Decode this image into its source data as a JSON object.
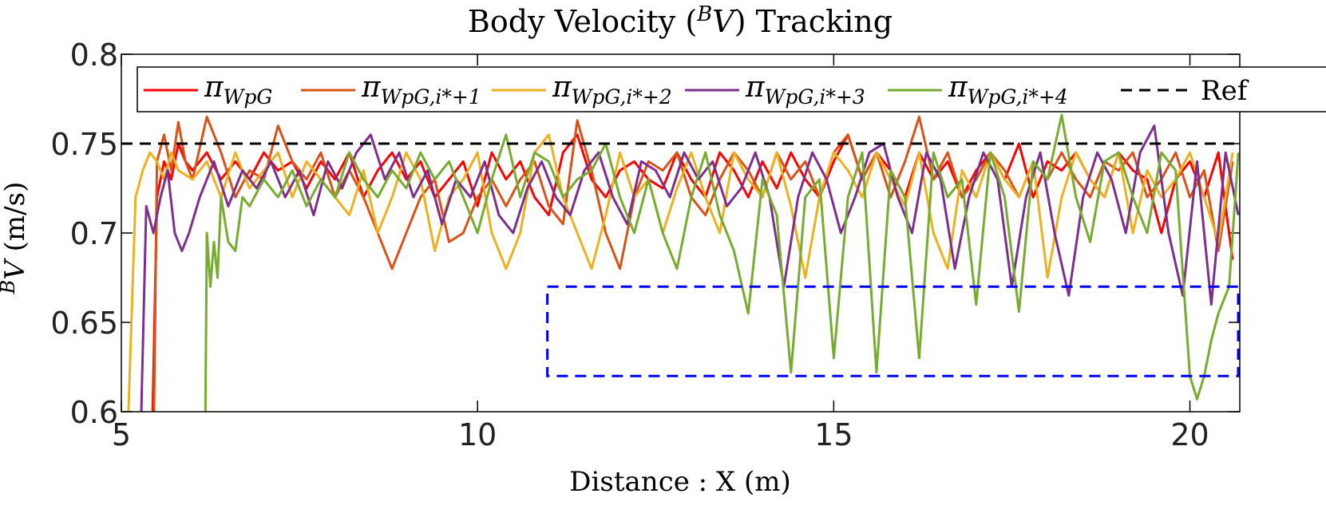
{
  "chart_data": {
    "type": "line",
    "title": "Body Velocity (",
    "title_sup": "B",
    "title_var": "V",
    "title_end": ") Tracking",
    "xlabel": "Distance : X (m)",
    "ylabel_sup": "B",
    "ylabel_var": "V",
    "ylabel_unit": " (m/s)",
    "xlim": [
      5,
      20.7
    ],
    "ylim": [
      0.6,
      0.8
    ],
    "xticks": [
      "5",
      "10",
      "15",
      "20"
    ],
    "xtick_values": [
      5,
      10,
      15,
      20
    ],
    "yticks": [
      "0.6",
      "0.65",
      "0.7",
      "0.75",
      "0.8"
    ],
    "ytick_values": [
      0.6,
      0.65,
      0.7,
      0.75,
      0.8
    ],
    "reference": {
      "name": "Ref",
      "value": 0.75,
      "color": "#000000"
    },
    "highlight_box": {
      "x": [
        10.98,
        20.7
      ],
      "y": [
        0.62,
        0.67
      ],
      "color": "#0000ff"
    },
    "series": [
      {
        "name": "π",
        "sub": "WpG",
        "color": "#ff0000",
        "x": [
          5.44,
          5.5,
          5.6,
          5.7,
          5.8,
          5.9,
          6.0,
          6.2,
          6.4,
          6.6,
          6.8,
          7.0,
          7.2,
          7.4,
          7.6,
          7.8,
          8.0,
          8.2,
          8.4,
          8.6,
          8.8,
          9.0,
          9.2,
          9.4,
          9.6,
          9.8,
          10.0,
          10.2,
          10.4,
          10.6,
          10.8,
          11.0,
          11.2,
          11.4,
          11.6,
          11.8,
          12.0,
          12.2,
          12.4,
          12.6,
          12.8,
          13.0,
          13.2,
          13.4,
          13.6,
          13.8,
          14.0,
          14.2,
          14.4,
          14.6,
          14.8,
          15.0,
          15.2,
          15.4,
          15.6,
          15.8,
          16.0,
          16.2,
          16.4,
          16.6,
          16.8,
          17.0,
          17.2,
          17.4,
          17.6,
          17.8,
          18.0,
          18.2,
          18.4,
          18.6,
          18.8,
          19.0,
          19.2,
          19.4,
          19.6,
          19.8,
          20.0,
          20.2,
          20.4,
          20.6
        ],
        "y": [
          0.6,
          0.72,
          0.74,
          0.73,
          0.75,
          0.74,
          0.735,
          0.745,
          0.73,
          0.74,
          0.73,
          0.745,
          0.735,
          0.74,
          0.725,
          0.74,
          0.73,
          0.745,
          0.72,
          0.735,
          0.745,
          0.73,
          0.74,
          0.72,
          0.73,
          0.74,
          0.715,
          0.745,
          0.73,
          0.74,
          0.72,
          0.71,
          0.745,
          0.755,
          0.73,
          0.72,
          0.735,
          0.74,
          0.73,
          0.725,
          0.745,
          0.73,
          0.72,
          0.745,
          0.735,
          0.72,
          0.74,
          0.725,
          0.745,
          0.73,
          0.72,
          0.74,
          0.755,
          0.73,
          0.745,
          0.735,
          0.72,
          0.745,
          0.73,
          0.74,
          0.72,
          0.735,
          0.745,
          0.73,
          0.75,
          0.72,
          0.74,
          0.735,
          0.745,
          0.73,
          0.72,
          0.745,
          0.735,
          0.73,
          0.7,
          0.73,
          0.74,
          0.72,
          0.745,
          0.685
        ]
      },
      {
        "name": "π",
        "sub": "WpG,i*+1",
        "color": "#d95319",
        "x": [
          5.46,
          5.5,
          5.6,
          5.7,
          5.8,
          5.9,
          6.0,
          6.2,
          6.4,
          6.6,
          6.8,
          7.0,
          7.2,
          7.4,
          7.6,
          7.8,
          8.0,
          8.2,
          8.4,
          8.6,
          8.8,
          9.0,
          9.2,
          9.4,
          9.6,
          9.8,
          10.0,
          10.2,
          10.4,
          10.6,
          10.8,
          11.0,
          11.2,
          11.4,
          11.6,
          11.8,
          12.0,
          12.2,
          12.4,
          12.6,
          12.8,
          13.0,
          13.2,
          13.4,
          13.6,
          13.8,
          14.0,
          14.2,
          14.4,
          14.6,
          14.8,
          15.0,
          15.2,
          15.4,
          15.6,
          15.8,
          16.0,
          16.2,
          16.4,
          16.6,
          16.8,
          17.0,
          17.2,
          17.4,
          17.6,
          17.8,
          18.0,
          18.2,
          18.4,
          18.6,
          18.8,
          19.0,
          19.2,
          19.4,
          19.6,
          19.8,
          20.0,
          20.2,
          20.4,
          20.6
        ],
        "y": [
          0.6,
          0.74,
          0.755,
          0.735,
          0.762,
          0.74,
          0.73,
          0.765,
          0.745,
          0.72,
          0.735,
          0.73,
          0.76,
          0.74,
          0.73,
          0.745,
          0.72,
          0.735,
          0.72,
          0.7,
          0.68,
          0.7,
          0.72,
          0.73,
          0.695,
          0.7,
          0.72,
          0.73,
          0.715,
          0.73,
          0.74,
          0.715,
          0.705,
          0.763,
          0.735,
          0.7,
          0.68,
          0.72,
          0.74,
          0.735,
          0.745,
          0.72,
          0.71,
          0.73,
          0.745,
          0.735,
          0.72,
          0.745,
          0.73,
          0.74,
          0.72,
          0.745,
          0.755,
          0.73,
          0.745,
          0.72,
          0.74,
          0.765,
          0.73,
          0.745,
          0.72,
          0.73,
          0.745,
          0.735,
          0.72,
          0.74,
          0.73,
          0.745,
          0.73,
          0.72,
          0.74,
          0.735,
          0.745,
          0.72,
          0.73,
          0.745,
          0.72,
          0.735,
          0.69,
          0.74
        ]
      },
      {
        "name": "π",
        "sub": "WpG,i*+2",
        "color": "#edb120",
        "x": [
          5.1,
          5.2,
          5.3,
          5.4,
          5.5,
          5.6,
          5.7,
          5.8,
          6.0,
          6.2,
          6.4,
          6.6,
          6.8,
          7.0,
          7.2,
          7.4,
          7.6,
          7.8,
          8.0,
          8.2,
          8.4,
          8.6,
          8.8,
          9.0,
          9.2,
          9.4,
          9.6,
          9.8,
          10.0,
          10.2,
          10.4,
          10.6,
          10.8,
          11.0,
          11.2,
          11.4,
          11.6,
          11.8,
          12.0,
          12.2,
          12.4,
          12.6,
          12.8,
          13.0,
          13.2,
          13.4,
          13.6,
          13.8,
          14.0,
          14.2,
          14.4,
          14.6,
          14.8,
          15.0,
          15.2,
          15.4,
          15.6,
          15.8,
          16.0,
          16.2,
          16.4,
          16.6,
          16.8,
          17.0,
          17.2,
          17.4,
          17.6,
          17.8,
          18.0,
          18.2,
          18.4,
          18.6,
          18.8,
          19.0,
          19.2,
          19.4,
          19.6,
          19.8,
          20.0,
          20.2,
          20.4,
          20.6
        ],
        "y": [
          0.6,
          0.72,
          0.735,
          0.745,
          0.74,
          0.73,
          0.745,
          0.735,
          0.73,
          0.74,
          0.72,
          0.745,
          0.725,
          0.735,
          0.745,
          0.72,
          0.74,
          0.73,
          0.72,
          0.71,
          0.735,
          0.7,
          0.72,
          0.745,
          0.73,
          0.69,
          0.72,
          0.73,
          0.745,
          0.7,
          0.68,
          0.7,
          0.745,
          0.755,
          0.72,
          0.7,
          0.68,
          0.71,
          0.745,
          0.72,
          0.73,
          0.7,
          0.725,
          0.745,
          0.72,
          0.7,
          0.745,
          0.73,
          0.72,
          0.745,
          0.715,
          0.675,
          0.72,
          0.745,
          0.735,
          0.72,
          0.745,
          0.73,
          0.715,
          0.745,
          0.7,
          0.68,
          0.735,
          0.72,
          0.745,
          0.73,
          0.72,
          0.74,
          0.675,
          0.72,
          0.745,
          0.73,
          0.72,
          0.745,
          0.7,
          0.735,
          0.72,
          0.73,
          0.745,
          0.72,
          0.695,
          0.745
        ]
      },
      {
        "name": "π",
        "sub": "WpG,i*+3",
        "color": "#7e2f8e",
        "x": [
          5.28,
          5.35,
          5.45,
          5.55,
          5.65,
          5.75,
          5.85,
          5.95,
          6.1,
          6.3,
          6.5,
          6.7,
          6.9,
          7.1,
          7.3,
          7.5,
          7.7,
          7.9,
          8.1,
          8.3,
          8.5,
          8.7,
          8.9,
          9.1,
          9.3,
          9.5,
          9.7,
          9.9,
          10.1,
          10.3,
          10.5,
          10.7,
          10.9,
          11.1,
          11.3,
          11.5,
          11.7,
          11.9,
          12.1,
          12.3,
          12.5,
          12.7,
          12.9,
          13.1,
          13.3,
          13.5,
          13.7,
          13.9,
          14.1,
          14.3,
          14.5,
          14.7,
          14.9,
          15.1,
          15.3,
          15.5,
          15.7,
          15.9,
          16.1,
          16.3,
          16.5,
          16.7,
          16.9,
          17.1,
          17.3,
          17.5,
          17.7,
          17.9,
          18.1,
          18.3,
          18.5,
          18.7,
          18.9,
          19.1,
          19.3,
          19.5,
          19.7,
          19.9,
          20.1,
          20.3,
          20.5,
          20.68
        ],
        "y": [
          0.6,
          0.715,
          0.7,
          0.72,
          0.735,
          0.7,
          0.69,
          0.7,
          0.72,
          0.74,
          0.715,
          0.735,
          0.725,
          0.74,
          0.72,
          0.735,
          0.71,
          0.74,
          0.725,
          0.745,
          0.755,
          0.73,
          0.745,
          0.72,
          0.735,
          0.705,
          0.73,
          0.72,
          0.74,
          0.71,
          0.7,
          0.725,
          0.74,
          0.72,
          0.71,
          0.735,
          0.745,
          0.72,
          0.705,
          0.74,
          0.735,
          0.72,
          0.745,
          0.73,
          0.74,
          0.715,
          0.725,
          0.745,
          0.72,
          0.67,
          0.72,
          0.745,
          0.73,
          0.7,
          0.72,
          0.745,
          0.75,
          0.72,
          0.7,
          0.745,
          0.73,
          0.68,
          0.72,
          0.745,
          0.73,
          0.67,
          0.72,
          0.745,
          0.7,
          0.665,
          0.72,
          0.745,
          0.73,
          0.7,
          0.745,
          0.76,
          0.7,
          0.665,
          0.74,
          0.66,
          0.745,
          0.71
        ]
      },
      {
        "name": "π",
        "sub": "WpG,i*+4",
        "color": "#77ac30",
        "x": [
          6.18,
          6.2,
          6.25,
          6.3,
          6.35,
          6.4,
          6.5,
          6.6,
          6.7,
          6.8,
          7.0,
          7.2,
          7.4,
          7.6,
          7.8,
          8.0,
          8.2,
          8.4,
          8.6,
          8.8,
          9.0,
          9.2,
          9.4,
          9.6,
          9.8,
          10.0,
          10.2,
          10.4,
          10.6,
          10.8,
          11.0,
          11.2,
          11.4,
          11.6,
          11.8,
          12.0,
          12.2,
          12.4,
          12.6,
          12.8,
          13.0,
          13.2,
          13.4,
          13.6,
          13.8,
          14.0,
          14.2,
          14.4,
          14.6,
          14.8,
          15.0,
          15.2,
          15.4,
          15.6,
          15.8,
          16.0,
          16.2,
          16.4,
          16.6,
          16.8,
          17.0,
          17.2,
          17.4,
          17.6,
          17.8,
          18.0,
          18.2,
          18.4,
          18.6,
          18.8,
          19.0,
          19.2,
          19.4,
          19.6,
          19.8,
          20.0,
          20.1,
          20.2,
          20.3,
          20.4,
          20.55,
          20.68
        ],
        "y": [
          0.6,
          0.7,
          0.67,
          0.695,
          0.675,
          0.72,
          0.695,
          0.69,
          0.72,
          0.715,
          0.73,
          0.72,
          0.735,
          0.715,
          0.73,
          0.72,
          0.745,
          0.73,
          0.72,
          0.735,
          0.725,
          0.745,
          0.73,
          0.74,
          0.72,
          0.7,
          0.73,
          0.755,
          0.72,
          0.745,
          0.74,
          0.72,
          0.73,
          0.735,
          0.75,
          0.72,
          0.7,
          0.73,
          0.7,
          0.68,
          0.72,
          0.745,
          0.71,
          0.69,
          0.655,
          0.73,
          0.71,
          0.622,
          0.72,
          0.73,
          0.63,
          0.72,
          0.745,
          0.622,
          0.735,
          0.72,
          0.63,
          0.745,
          0.72,
          0.73,
          0.66,
          0.745,
          0.72,
          0.656,
          0.74,
          0.73,
          0.766,
          0.72,
          0.695,
          0.74,
          0.745,
          0.72,
          0.7,
          0.745,
          0.735,
          0.62,
          0.607,
          0.62,
          0.64,
          0.655,
          0.67,
          0.745
        ]
      },
      {
        "name": "Ref",
        "color": "#000000",
        "dashed": true,
        "x": [
          5,
          20.7
        ],
        "y": [
          0.75,
          0.75
        ]
      }
    ]
  }
}
